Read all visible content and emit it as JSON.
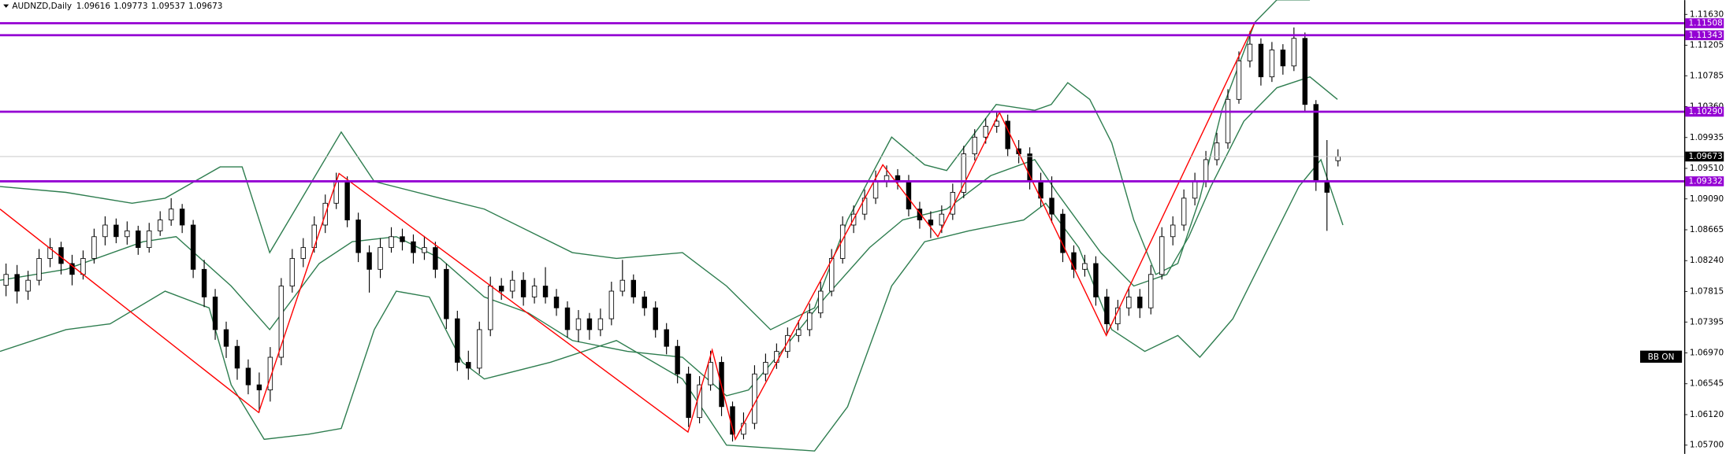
{
  "chart_data": {
    "type": "candlestick",
    "symbol": "AUDNZD,Daily",
    "indicator_label": "BB ON",
    "ylim": [
      1.05579,
      1.11827
    ],
    "yticks": [
      {
        "value": 1.1163,
        "label": "1.11630"
      },
      1.11205,
      1.10785,
      {
        "value": 1.1036,
        "label": "1.10360"
      },
      1.09935,
      {
        "value": 1.0951,
        "label": "1.09510"
      },
      {
        "value": 1.0909,
        "label": "1.09090"
      },
      1.08665,
      {
        "value": 1.0824,
        "label": "1.08240"
      },
      1.07815,
      1.07395,
      {
        "value": 1.0697,
        "label": "1.06970"
      },
      1.06545,
      {
        "value": 1.0612,
        "label": "1.06120"
      },
      {
        "value": 1.057,
        "label": "1.05700"
      }
    ],
    "grid": false,
    "up_color": "#ffffff",
    "down_color": "#000000",
    "candles": [
      [
        1.079,
        1.082,
        1.0775,
        1.0805
      ],
      [
        1.0805,
        1.0818,
        1.0765,
        1.0782
      ],
      [
        1.0782,
        1.081,
        1.077,
        1.0797
      ],
      [
        1.0797,
        1.084,
        1.079,
        1.0827
      ],
      [
        1.0827,
        1.0855,
        1.0815,
        1.0842
      ],
      [
        1.0842,
        1.085,
        1.0805,
        1.082
      ],
      [
        1.082,
        1.0832,
        1.079,
        1.0805
      ],
      [
        1.0805,
        1.0838,
        1.0798,
        1.0827
      ],
      [
        1.0827,
        1.0868,
        1.082,
        1.0857
      ],
      [
        1.0857,
        1.0885,
        1.0845,
        1.0873
      ],
      [
        1.0873,
        1.0882,
        1.0848,
        1.0857
      ],
      [
        1.0857,
        1.0878,
        1.0846,
        1.0865
      ],
      [
        1.0865,
        1.0872,
        1.0832,
        1.0842
      ],
      [
        1.0842,
        1.0876,
        1.0835,
        1.0865
      ],
      [
        1.0865,
        1.0892,
        1.0858,
        1.088
      ],
      [
        1.088,
        1.091,
        1.0872,
        1.0895
      ],
      [
        1.0895,
        1.0902,
        1.0862,
        1.0873
      ],
      [
        1.0873,
        1.088,
        1.08,
        1.0812
      ],
      [
        1.0812,
        1.0825,
        1.076,
        1.0774
      ],
      [
        1.0774,
        1.0785,
        1.0715,
        1.0729
      ],
      [
        1.0729,
        1.074,
        1.069,
        1.0706
      ],
      [
        1.0706,
        1.0715,
        1.066,
        1.0676
      ],
      [
        1.0676,
        1.0688,
        1.064,
        1.0653
      ],
      [
        1.0653,
        1.067,
        1.0615,
        1.0646
      ],
      [
        1.0646,
        1.0705,
        1.063,
        1.0691
      ],
      [
        1.0691,
        1.08,
        1.068,
        1.0789
      ],
      [
        1.0789,
        1.084,
        1.078,
        1.0827
      ],
      [
        1.0827,
        1.0855,
        1.0815,
        1.0842
      ],
      [
        1.0842,
        1.0885,
        1.0835,
        1.0873
      ],
      [
        1.0873,
        1.0915,
        1.0862,
        1.0903
      ],
      [
        1.0903,
        1.0945,
        1.0895,
        1.0933
      ],
      [
        1.0933,
        1.094,
        1.087,
        1.088
      ],
      [
        1.088,
        1.089,
        1.0822,
        1.0835
      ],
      [
        1.0835,
        1.0845,
        1.078,
        1.0812
      ],
      [
        1.0812,
        1.0855,
        1.08,
        1.0842
      ],
      [
        1.0842,
        1.087,
        1.0835,
        1.0857
      ],
      [
        1.0857,
        1.0868,
        1.0838,
        1.085
      ],
      [
        1.085,
        1.086,
        1.082,
        1.0835
      ],
      [
        1.0835,
        1.0858,
        1.0825,
        1.0842
      ],
      [
        1.0842,
        1.085,
        1.08,
        1.0812
      ],
      [
        1.0812,
        1.082,
        1.073,
        1.0744
      ],
      [
        1.0744,
        1.0755,
        1.0672,
        1.0684
      ],
      [
        1.0684,
        1.07,
        1.066,
        1.0676
      ],
      [
        1.0676,
        1.074,
        1.0668,
        1.0729
      ],
      [
        1.0729,
        1.0802,
        1.072,
        1.0789
      ],
      [
        1.0789,
        1.08,
        1.077,
        1.0782
      ],
      [
        1.0782,
        1.081,
        1.0772,
        1.0797
      ],
      [
        1.0797,
        1.0808,
        1.0762,
        1.0774
      ],
      [
        1.0774,
        1.08,
        1.0765,
        1.0789
      ],
      [
        1.0789,
        1.0815,
        1.0765,
        1.0774
      ],
      [
        1.0774,
        1.0785,
        1.0748,
        1.0759
      ],
      [
        1.0759,
        1.0768,
        1.0718,
        1.0729
      ],
      [
        1.0729,
        1.0756,
        1.0712,
        1.0744
      ],
      [
        1.0744,
        1.0752,
        1.0715,
        1.0729
      ],
      [
        1.0729,
        1.0758,
        1.072,
        1.0744
      ],
      [
        1.0744,
        1.0795,
        1.0735,
        1.0782
      ],
      [
        1.0782,
        1.0825,
        1.0775,
        1.0797
      ],
      [
        1.0797,
        1.0805,
        1.0765,
        1.0774
      ],
      [
        1.0774,
        1.0782,
        1.0748,
        1.0759
      ],
      [
        1.0759,
        1.0768,
        1.0718,
        1.0729
      ],
      [
        1.0729,
        1.0738,
        1.0695,
        1.0706
      ],
      [
        1.0706,
        1.0715,
        1.0655,
        1.0668
      ],
      [
        1.0668,
        1.0678,
        1.0595,
        1.0608
      ],
      [
        1.0608,
        1.0665,
        1.06,
        1.0653
      ],
      [
        1.0653,
        1.07,
        1.0645,
        1.0684
      ],
      [
        1.0684,
        1.0692,
        1.061,
        1.0623
      ],
      [
        1.0623,
        1.063,
        1.0575,
        1.0585
      ],
      [
        1.0585,
        1.0615,
        1.0578,
        1.06
      ],
      [
        1.06,
        1.068,
        1.0592,
        1.0668
      ],
      [
        1.0668,
        1.0696,
        1.0658,
        1.0684
      ],
      [
        1.0684,
        1.071,
        1.0675,
        1.0699
      ],
      [
        1.0699,
        1.0732,
        1.069,
        1.0721
      ],
      [
        1.0721,
        1.0742,
        1.0712,
        1.0729
      ],
      [
        1.0729,
        1.0765,
        1.072,
        1.0752
      ],
      [
        1.0752,
        1.0795,
        1.0745,
        1.0782
      ],
      [
        1.0782,
        1.084,
        1.0775,
        1.0827
      ],
      [
        1.0827,
        1.0885,
        1.082,
        1.0873
      ],
      [
        1.0873,
        1.09,
        1.0862,
        1.0888
      ],
      [
        1.0888,
        1.0922,
        1.088,
        1.091
      ],
      [
        1.091,
        1.0948,
        1.0902,
        1.0933
      ],
      [
        1.0933,
        1.0955,
        1.0925,
        1.0941
      ],
      [
        1.0941,
        1.095,
        1.0922,
        1.0933
      ],
      [
        1.0933,
        1.0942,
        1.0885,
        1.0895
      ],
      [
        1.0895,
        1.0905,
        1.0868,
        1.088
      ],
      [
        1.088,
        1.0892,
        1.0855,
        1.0873
      ],
      [
        1.0873,
        1.09,
        1.0862,
        1.0888
      ],
      [
        1.0888,
        1.093,
        1.088,
        1.0918
      ],
      [
        1.0918,
        1.0982,
        1.091,
        1.0971
      ],
      [
        1.0971,
        1.1005,
        1.0962,
        1.0994
      ],
      [
        1.0994,
        1.102,
        1.0985,
        1.1009
      ],
      [
        1.1009,
        1.103,
        1.1,
        1.1016
      ],
      [
        1.1016,
        1.1025,
        1.0968,
        1.0978
      ],
      [
        1.0978,
        1.099,
        1.0958,
        1.0971
      ],
      [
        1.0971,
        1.098,
        1.0922,
        1.0933
      ],
      [
        1.0933,
        1.0945,
        1.0898,
        1.091
      ],
      [
        1.091,
        1.094,
        1.0876,
        1.0888
      ],
      [
        1.0888,
        1.0895,
        1.0822,
        1.0835
      ],
      [
        1.0835,
        1.0845,
        1.08,
        1.0812
      ],
      [
        1.0812,
        1.0832,
        1.0802,
        1.082
      ],
      [
        1.082,
        1.083,
        1.0762,
        1.0774
      ],
      [
        1.0774,
        1.0785,
        1.0722,
        1.0737
      ],
      [
        1.0737,
        1.077,
        1.0728,
        1.0759
      ],
      [
        1.0759,
        1.0788,
        1.0748,
        1.0774
      ],
      [
        1.0774,
        1.0785,
        1.0745,
        1.0759
      ],
      [
        1.0759,
        1.0818,
        1.075,
        1.0805
      ],
      [
        1.0805,
        1.087,
        1.0798,
        1.0857
      ],
      [
        1.0857,
        1.0885,
        1.0845,
        1.0873
      ],
      [
        1.0873,
        1.0922,
        1.0865,
        1.091
      ],
      [
        1.091,
        1.0945,
        1.09,
        1.0933
      ],
      [
        1.0933,
        1.0975,
        1.0925,
        1.0963
      ],
      [
        1.0963,
        1.1,
        1.0955,
        1.0986
      ],
      [
        1.0986,
        1.106,
        1.0978,
        1.1046
      ],
      [
        1.1046,
        1.1112,
        1.104,
        1.1099
      ],
      [
        1.1099,
        1.114,
        1.109,
        1.1122
      ],
      [
        1.1122,
        1.113,
        1.1065,
        1.1077
      ],
      [
        1.1077,
        1.1125,
        1.107,
        1.1114
      ],
      [
        1.1114,
        1.1122,
        1.108,
        1.1092
      ],
      [
        1.1092,
        1.1145,
        1.1085,
        1.113
      ],
      [
        1.113,
        1.1138,
        1.103,
        1.1039
      ],
      [
        1.1039,
        1.1045,
        1.092,
        1.0933
      ],
      [
        1.0933,
        1.099,
        1.0865,
        1.0918
      ],
      [
        1.09616,
        1.09773,
        1.09537,
        1.09673
      ]
    ],
    "bands": {
      "color": "#2e7d4f",
      "upper": {
        "x": [
          -0.5,
          5.5,
          11.5,
          14.5,
          19.5,
          21.5,
          24,
          30.5,
          33.5,
          39.5,
          43.5,
          51.5,
          55.5,
          61.5,
          65.5,
          69.5,
          73.5,
          76.5,
          80.5,
          83.5,
          85.5,
          90,
          93.5,
          95,
          96.5,
          98.5,
          100.5,
          102.5,
          104.5,
          106.5,
          108.5,
          110.5,
          113.5,
          115.5,
          118.5
        ],
        "values": [
          1.0926,
          1.0918,
          1.0903,
          1.091,
          1.0953,
          1.0953,
          1.0835,
          1.1001,
          1.0933,
          1.091,
          1.0895,
          1.0835,
          1.0827,
          1.0835,
          1.0789,
          1.0729,
          1.0759,
          1.088,
          1.0994,
          1.0956,
          1.0948,
          1.1039,
          1.1031,
          1.1039,
          1.1069,
          1.1046,
          1.0986,
          1.088,
          1.0805,
          1.082,
          1.091,
          1.1031,
          1.1152,
          1.1183,
          1.1183
        ]
      },
      "middle": {
        "x": [
          -0.5,
          5.5,
          12.5,
          15.5,
          20.5,
          24,
          28.5,
          31.5,
          35.5,
          39.5,
          43.5,
          47.5,
          51.5,
          56.5,
          61.5,
          65.5,
          67.5,
          70.5,
          74.5,
          78.5,
          81.5,
          85.5,
          89.5,
          93.5,
          95.5,
          99.5,
          102.5,
          105.5,
          107.5,
          109.5,
          112.5,
          115.5,
          118.5,
          121
        ],
        "values": [
          1.0797,
          1.0812,
          1.085,
          1.0857,
          1.0789,
          1.0729,
          1.082,
          1.085,
          1.0857,
          1.0827,
          1.0774,
          1.0752,
          1.0714,
          1.0699,
          1.0691,
          1.0638,
          1.0646,
          1.0699,
          1.0774,
          1.0842,
          1.088,
          1.0895,
          1.0941,
          1.0963,
          1.0918,
          1.0835,
          1.0789,
          1.0805,
          1.0857,
          1.0926,
          1.1016,
          1.1062,
          1.1077,
          1.1046
        ]
      },
      "lower": {
        "x": [
          -0.5,
          5.5,
          9.5,
          14.5,
          18.5,
          20.5,
          23.5,
          27.5,
          30.5,
          33.5,
          35.5,
          38.5,
          41.5,
          43.5,
          49.5,
          55.5,
          61.5,
          65.5,
          73.5,
          76.5,
          80.5,
          83.5,
          87.5,
          92.5,
          94.5,
          97.5,
          100.5,
          103.5,
          106.5,
          108.5,
          111.5,
          114.5,
          117.5,
          119.5,
          121.5
        ],
        "values": [
          1.0699,
          1.0729,
          1.0737,
          1.0782,
          1.0759,
          1.0653,
          1.0578,
          1.0585,
          1.0593,
          1.0729,
          1.0782,
          1.0774,
          1.0684,
          1.0661,
          1.0684,
          1.0714,
          1.0661,
          1.057,
          1.0562,
          1.0623,
          1.0789,
          1.085,
          1.0865,
          1.088,
          1.0903,
          1.0842,
          1.0729,
          1.0699,
          1.0721,
          1.0691,
          1.0744,
          1.0835,
          1.0926,
          1.0963,
          1.0873
        ]
      }
    },
    "zigzag": {
      "color": "#ff0000",
      "x": [
        -0.5,
        23,
        30.3,
        62,
        64.2,
        66.3,
        79.7,
        84.7,
        90.3,
        100,
        113.5
      ],
      "values": [
        1.0895,
        1.0615,
        1.0944,
        1.0588,
        1.0701,
        1.0578,
        1.0956,
        1.0857,
        1.1028,
        1.0721,
        1.1152
      ]
    },
    "level_color": "#9400d3",
    "levels": [
      1.11508,
      1.11343,
      {
        "value": 1.1029,
        "label": "1.10290"
      },
      1.09332
    ],
    "price_line_color": "#c0c0c0"
  }
}
